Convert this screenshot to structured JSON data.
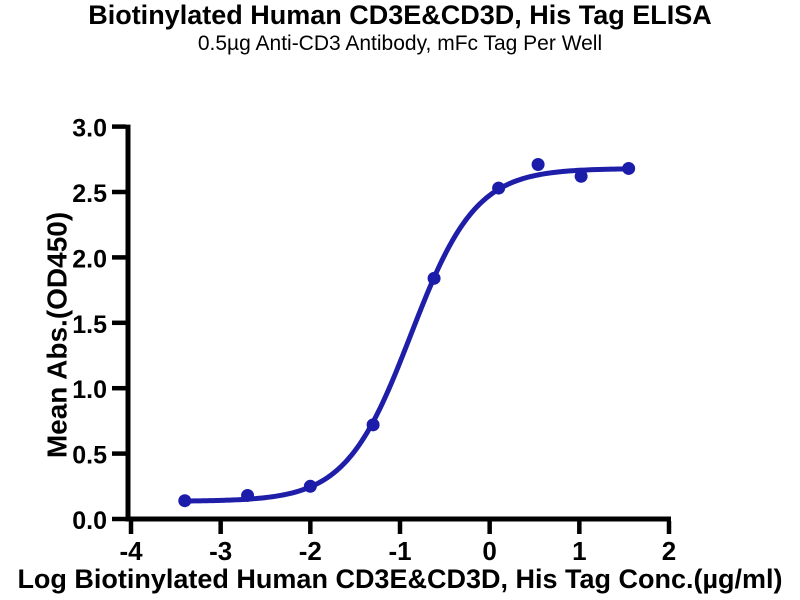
{
  "header": {
    "title": "Biotinylated Human CD3E&CD3D, His Tag ELISA",
    "subtitle": "0.5µg Anti-CD3 Antibody, mFc Tag Per Well"
  },
  "chart_data": {
    "type": "scatter",
    "title": "Biotinylated Human CD3E&CD3D, His Tag ELISA",
    "subtitle": "0.5µg Anti-CD3 Antibody, mFc Tag Per Well",
    "xlabel": "Log Biotinylated Human CD3E&CD3D, His Tag Conc.(µg/ml)",
    "ylabel": "Mean Abs.(OD450)",
    "xlim": [
      -4,
      2
    ],
    "ylim": [
      0,
      3
    ],
    "x_ticks": [
      -4,
      -3,
      -2,
      -1,
      0,
      1,
      2
    ],
    "x_tick_labels": [
      "-4",
      "-3",
      "-2",
      "-1",
      "0",
      "1",
      "2"
    ],
    "y_ticks": [
      0,
      0.5,
      1,
      1.5,
      2,
      2.5,
      3
    ],
    "y_tick_labels": [
      "0.0",
      "0.5",
      "1.0",
      "1.5",
      "2.0",
      "2.5",
      "3.0"
    ],
    "grid": false,
    "legend": null,
    "series": [
      {
        "name": "Biotinylated Human CD3E&CD3D, His Tag",
        "x": [
          -3.4,
          -2.7,
          -2.0,
          -1.3,
          -0.62,
          0.1,
          0.54,
          1.02,
          1.55
        ],
        "y": [
          0.14,
          0.18,
          0.25,
          0.72,
          1.84,
          2.53,
          2.71,
          2.62,
          2.68
        ]
      }
    ],
    "fit_curve": {
      "model": "4PL",
      "bottom": 0.135,
      "top": 2.68,
      "logEC50": -0.88,
      "hillslope": 1.2,
      "x_start": -3.4,
      "x_end": 1.55
    },
    "colors": {
      "curve": "#1e1ea8",
      "marker": "#1c1caa",
      "axis": "#000000",
      "text": "#000000",
      "background": "#ffffff"
    }
  }
}
